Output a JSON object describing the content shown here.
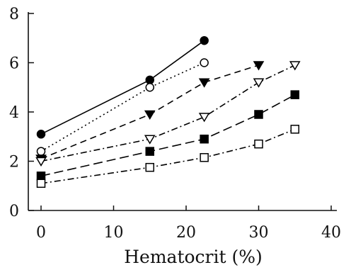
{
  "chart_data": {
    "type": "line",
    "xlabel": "Hematocrit (%)",
    "ylabel": "",
    "xlim": [
      0,
      40
    ],
    "ylim": [
      0,
      8
    ],
    "x_ticks": [
      0,
      10,
      20,
      30,
      40
    ],
    "y_ticks": [
      0,
      2,
      4,
      6,
      8
    ],
    "grid": false,
    "legend": "none",
    "series": [
      {
        "marker": "filled-circle",
        "line_style": "solid",
        "color": "#000000",
        "x": [
          0,
          15,
          22.5
        ],
        "y": [
          3.1,
          5.3,
          6.9
        ]
      },
      {
        "marker": "open-circle",
        "line_style": "dotted",
        "color": "#000000",
        "x": [
          0,
          15,
          22.5
        ],
        "y": [
          2.4,
          5.0,
          6.0
        ]
      },
      {
        "marker": "filled-triangle-down",
        "line_style": "dashed",
        "color": "#000000",
        "x": [
          0,
          15,
          22.5,
          30
        ],
        "y": [
          2.1,
          3.9,
          5.2,
          5.9
        ]
      },
      {
        "marker": "open-triangle-down",
        "line_style": "dash-dot",
        "color": "#000000",
        "x": [
          0,
          15,
          22.5,
          30,
          35
        ],
        "y": [
          2.0,
          2.9,
          3.8,
          5.2,
          5.9
        ]
      },
      {
        "marker": "filled-square",
        "line_style": "long-dash",
        "color": "#000000",
        "x": [
          0,
          15,
          22.5,
          30,
          35
        ],
        "y": [
          1.4,
          2.4,
          2.9,
          3.9,
          4.7
        ]
      },
      {
        "marker": "open-square",
        "line_style": "dash-dot",
        "color": "#000000",
        "x": [
          0,
          15,
          22.5,
          30,
          35
        ],
        "y": [
          1.1,
          1.75,
          2.15,
          2.7,
          3.3
        ]
      }
    ]
  }
}
